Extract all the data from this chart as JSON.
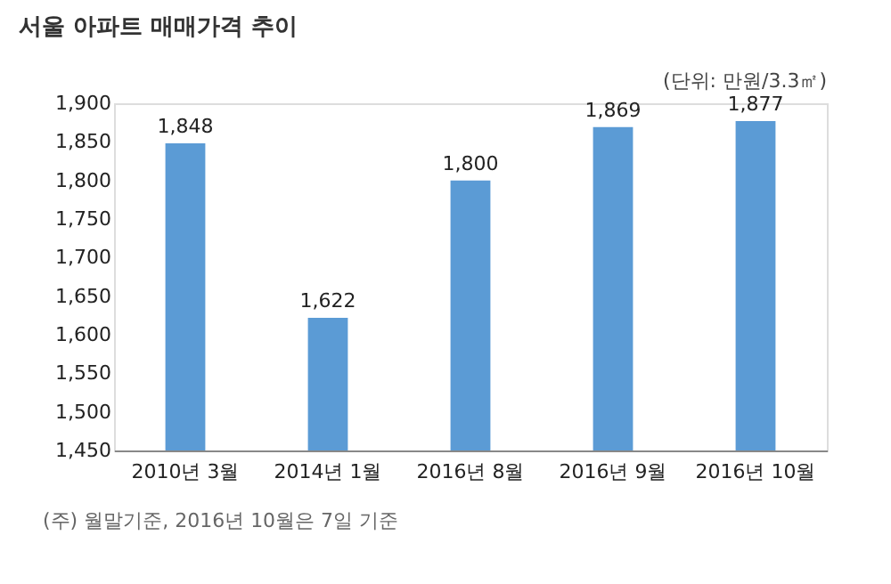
{
  "chart_data": {
    "type": "bar",
    "title": "서울 아파트 매매가격 추이",
    "categories": [
      "2010년 3월",
      "2014년 1월",
      "2016년 8월",
      "2016년 9월",
      "2016년 10월"
    ],
    "values": [
      1848,
      1622,
      1800,
      1869,
      1877
    ],
    "value_labels": [
      "1,848",
      "1,622",
      "1,800",
      "1,869",
      "1,877"
    ],
    "color": "#5b9bd5",
    "ylim": [
      1450,
      1900
    ],
    "yticks": [
      {
        "value": 1450,
        "label": "1,450"
      },
      {
        "value": 1500,
        "label": "1,500"
      },
      {
        "value": 1550,
        "label": "1,550"
      },
      {
        "value": 1600,
        "label": "1,600"
      },
      {
        "value": 1650,
        "label": "1,650"
      },
      {
        "value": 1700,
        "label": "1,700"
      },
      {
        "value": 1750,
        "label": "1,750"
      },
      {
        "value": 1800,
        "label": "1,800"
      },
      {
        "value": 1850,
        "label": "1,850"
      },
      {
        "value": 1900,
        "label": "1,900"
      }
    ],
    "grid": false,
    "annotations": [
      "(단위: 만원/3.3㎡)",
      "(주) 월말기준, 2016년 10월은 7일 기준"
    ]
  }
}
